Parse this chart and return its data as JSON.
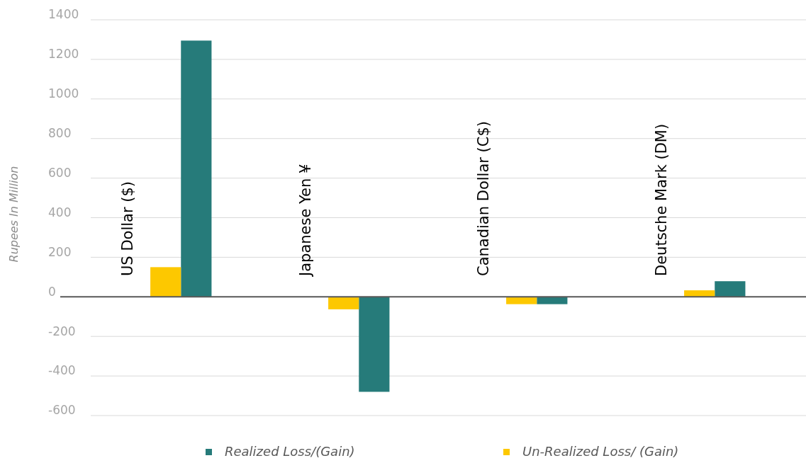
{
  "chart_data": {
    "type": "bar",
    "ylabel": "Rupees In Million",
    "categories": [
      "US Dollar ($)",
      "Japanese Yen ¥",
      "Canadian Dollar (C$)",
      "Deutsche Mark (DM)"
    ],
    "series": [
      {
        "name": "Realized Loss/(Gain)",
        "color": "#267b7a",
        "values": [
          1295,
          -480,
          -37,
          79
        ]
      },
      {
        "name": "Un-Realized Loss/ (Gain)",
        "color": "#fdc800",
        "values": [
          150,
          -63,
          -37,
          33
        ]
      }
    ],
    "ylim": [
      -600,
      1400
    ],
    "yticks": [
      -600,
      -400,
      -200,
      0,
      200,
      400,
      600,
      800,
      1000,
      1200,
      1400
    ],
    "grid": "y",
    "legend": "bottom"
  }
}
